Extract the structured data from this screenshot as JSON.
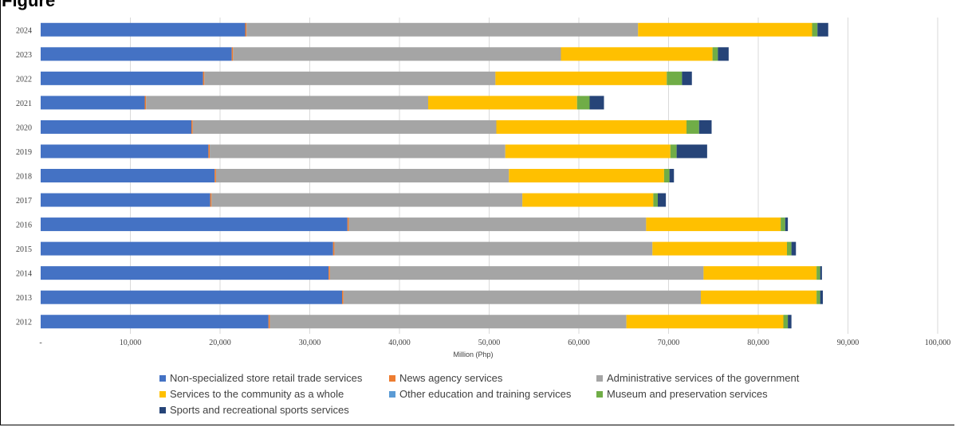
{
  "title": "Figure",
  "colors": {
    "Non-specialized store retail trade services": "#4472C4",
    "News agency services": "#ED7D31",
    "Administrative services of the government": "#A5A5A5",
    "Services to the community as a whole": "#FFC000",
    "Other education and training services": "#5B9BD5",
    "Museum and preservation services": "#70AD47",
    "Sports and recreational sports services": "#264478"
  },
  "chart_data": {
    "type": "bar",
    "orientation": "horizontal",
    "stacked": true,
    "title": "",
    "xlabel": "Million (Php)",
    "ylabel": "",
    "xlim": [
      0,
      100000
    ],
    "x_ticks": [
      "-",
      "10,000",
      "20,000",
      "30,000",
      "40,000",
      "50,000",
      "60,000",
      "70,000",
      "80,000",
      "90,000",
      "100,000"
    ],
    "grid": "vertical",
    "legend_position": "bottom",
    "categories": [
      "2024",
      "2023",
      "2022",
      "2021",
      "2020",
      "2019",
      "2018",
      "2017",
      "2016",
      "2015",
      "2014",
      "2013",
      "2012"
    ],
    "series": [
      {
        "name": "Non-specialized store retail trade services",
        "values": [
          22800,
          21300,
          18100,
          11600,
          16800,
          18700,
          19400,
          18900,
          34200,
          32600,
          32100,
          33600,
          25400
        ]
      },
      {
        "name": "News agency services",
        "values": [
          150,
          150,
          150,
          150,
          150,
          150,
          150,
          150,
          150,
          150,
          150,
          150,
          150
        ]
      },
      {
        "name": "Administrative services of the government",
        "values": [
          43650,
          36550,
          32450,
          31450,
          33850,
          32950,
          32650,
          34650,
          33150,
          35450,
          41650,
          39850,
          39750
        ]
      },
      {
        "name": "Services to the community as a whole",
        "values": [
          19400,
          16900,
          19100,
          16600,
          21200,
          18400,
          17300,
          14600,
          15000,
          15000,
          12600,
          12900,
          17500
        ]
      },
      {
        "name": "Other education and training services",
        "values": [
          0,
          0,
          0,
          0,
          0,
          0,
          0,
          0,
          0,
          0,
          0,
          0,
          0
        ]
      },
      {
        "name": "Museum and preservation services",
        "values": [
          600,
          600,
          1700,
          1400,
          1400,
          700,
          600,
          500,
          500,
          500,
          400,
          400,
          500
        ]
      },
      {
        "name": "Sports and recreational sports services",
        "values": [
          1200,
          1200,
          1100,
          1600,
          1400,
          3400,
          500,
          900,
          300,
          500,
          200,
          300,
          400
        ]
      }
    ]
  }
}
